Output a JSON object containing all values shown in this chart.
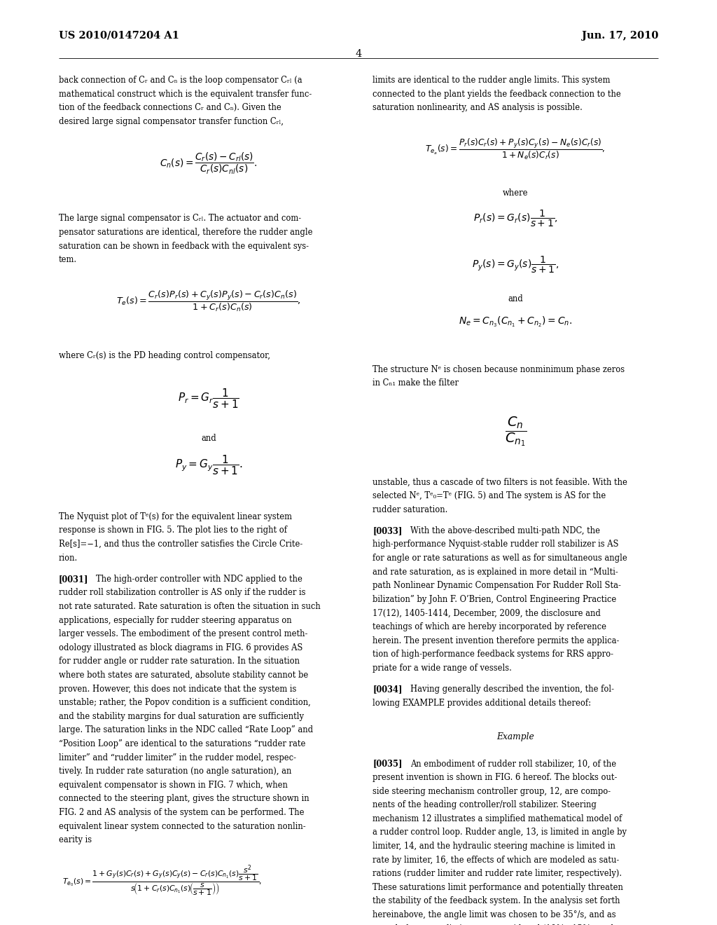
{
  "bg_color": "#ffffff",
  "page_width": 10.24,
  "page_height": 13.2,
  "header_left": "US 2010/0147204 A1",
  "header_right": "Jun. 17, 2010",
  "page_number": "4",
  "fs": 8.3,
  "lh": 0.01485
}
